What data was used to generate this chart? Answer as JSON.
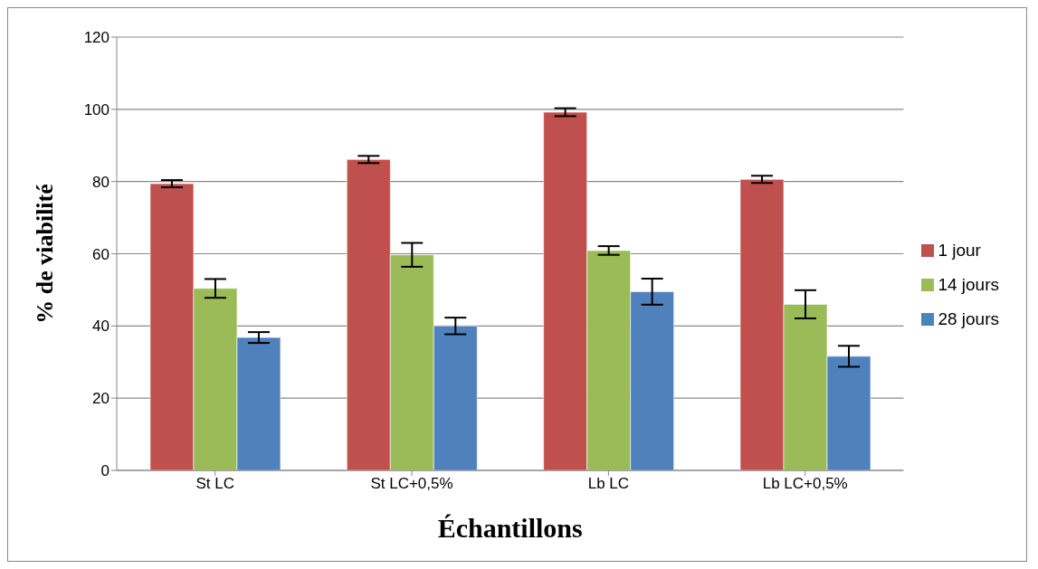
{
  "chart_data": {
    "type": "bar",
    "xlabel": "Échantillons",
    "ylabel": "% de viabilité",
    "categories": [
      "St LC",
      "St LC+0,5%",
      "Lb LC",
      "Lb LC+0,5%"
    ],
    "series": [
      {
        "name": "1 jour",
        "color": "#c0504d",
        "values": [
          79.4,
          86.1,
          99.2,
          80.6
        ],
        "errors": [
          1.0,
          1.0,
          1.1,
          1.0
        ]
      },
      {
        "name": "14 jours",
        "color": "#9bbb59",
        "values": [
          50.4,
          59.7,
          60.9,
          46.0
        ],
        "errors": [
          2.6,
          3.3,
          1.2,
          3.9
        ]
      },
      {
        "name": "28 jours",
        "color": "#4f81bd",
        "values": [
          36.8,
          40.0,
          49.5,
          31.6
        ],
        "errors": [
          1.5,
          2.3,
          3.6,
          2.9
        ]
      }
    ],
    "ylim": [
      0,
      120
    ],
    "yticks": [
      0,
      20,
      40,
      60,
      80,
      100,
      120
    ],
    "grid": "y",
    "legend": "right"
  }
}
